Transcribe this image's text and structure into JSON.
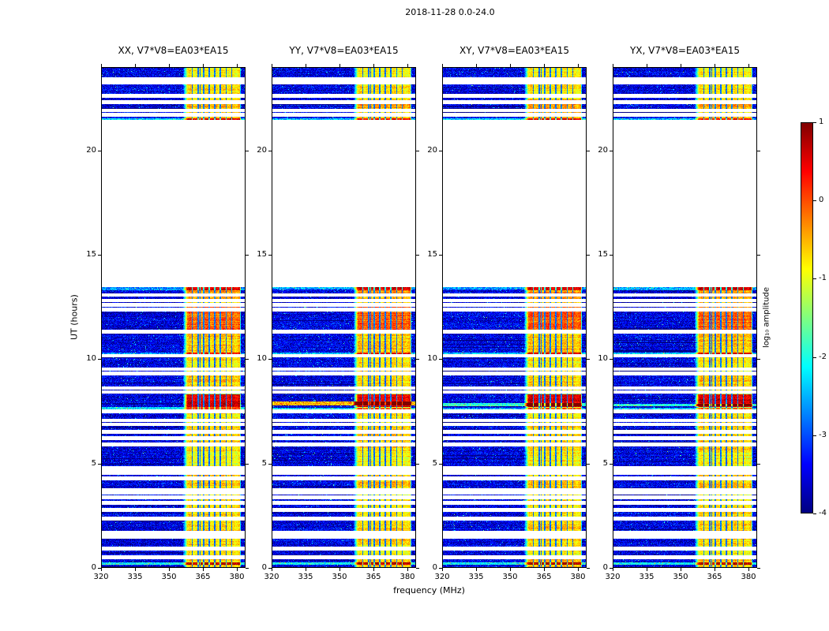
{
  "chart_data": {
    "type": "heatmap",
    "title": "2018-11-28 0.0-24.0",
    "xlabel": "frequency (MHz)",
    "ylabel": "UT (hours)",
    "x_range": [
      320,
      384
    ],
    "x_ticks": [
      320,
      335,
      350,
      365,
      380
    ],
    "y_range": [
      0,
      24
    ],
    "y_ticks": [
      0,
      5,
      10,
      15,
      20
    ],
    "colorbar": {
      "label": "log₁₀ amplitude",
      "ticks": [
        1,
        0,
        -1,
        -2,
        -3,
        -4
      ],
      "range": [
        -4,
        1
      ],
      "colormap": "jet"
    },
    "panels": [
      {
        "label": "XX, V7*V8=EA03*EA15",
        "seed": 101,
        "full_rows": [
          [
            7.56,
            7.7,
            1.3
          ]
        ]
      },
      {
        "label": "YY, V7*V8=EA03*EA15",
        "seed": 202,
        "full_rows": [
          [
            7.8,
            7.97,
            2.9
          ]
        ]
      },
      {
        "label": "XY, V7*V8=EA03*EA15",
        "seed": 303,
        "full_rows": [
          [
            7.76,
            7.9,
            1.6
          ]
        ]
      },
      {
        "label": "YX, V7*V8=EA03*EA15",
        "seed": 404,
        "full_rows": [
          [
            7.73,
            7.87,
            1.5
          ]
        ]
      }
    ],
    "time_segments": [
      [
        0.0,
        13.45
      ],
      [
        21.45,
        24.0
      ]
    ],
    "noise_floor": -3.5,
    "band": {
      "f_start": 358.2,
      "f_end": 381.4,
      "base_level": -1.15
    },
    "rfi_stripes": [
      360.4,
      362.9,
      363.9,
      365.4,
      367.9,
      370.4,
      372.9,
      375.4,
      377.9
    ],
    "stripe_width": 0.6,
    "gaps": [
      [
        0.5,
        0.09
      ],
      [
        0.92,
        0.09
      ],
      [
        1.5,
        0.1
      ],
      [
        1.68,
        0.08
      ],
      [
        2.35,
        0.09
      ],
      [
        2.78,
        0.08
      ],
      [
        3.12,
        0.08
      ],
      [
        3.38,
        0.08
      ],
      [
        3.58,
        0.08
      ],
      [
        3.72,
        0.09
      ],
      [
        4.28,
        0.09
      ],
      [
        4.58,
        0.11
      ],
      [
        4.78,
        0.08
      ],
      [
        5.92,
        0.09
      ],
      [
        6.22,
        0.08
      ],
      [
        6.52,
        0.08
      ],
      [
        6.88,
        0.09
      ],
      [
        7.08,
        0.08
      ],
      [
        7.5,
        0.11
      ],
      [
        8.42,
        0.08
      ],
      [
        8.62,
        0.09
      ],
      [
        9.32,
        0.09
      ],
      [
        9.52,
        0.08
      ],
      [
        10.18,
        0.08
      ],
      [
        11.32,
        0.08
      ],
      [
        12.38,
        0.09
      ],
      [
        12.6,
        0.09
      ],
      [
        12.82,
        0.08
      ],
      [
        13.08,
        0.09
      ],
      [
        21.72,
        0.09
      ],
      [
        21.92,
        0.08
      ],
      [
        22.32,
        0.09
      ],
      [
        22.62,
        0.11
      ],
      [
        23.25,
        0.09
      ],
      [
        23.42,
        0.08
      ]
    ],
    "bright_intervals": [
      [
        0.0,
        0.6,
        0.55
      ],
      [
        0.6,
        1.1,
        0.3
      ],
      [
        1.1,
        2.2,
        0.5
      ],
      [
        2.2,
        3.3,
        0.4
      ],
      [
        3.3,
        3.7,
        0.25
      ],
      [
        3.7,
        4.5,
        0.55
      ],
      [
        4.5,
        5.6,
        0.3
      ],
      [
        5.6,
        6.9,
        0.5
      ],
      [
        6.9,
        7.6,
        0.35
      ],
      [
        7.72,
        8.32,
        1.7
      ],
      [
        8.5,
        9.4,
        0.5
      ],
      [
        9.4,
        10.2,
        0.35
      ],
      [
        10.2,
        11.3,
        0.55
      ],
      [
        11.35,
        12.55,
        1.05
      ],
      [
        12.55,
        12.75,
        0.6
      ],
      [
        12.75,
        13.45,
        0.8
      ],
      [
        21.45,
        21.9,
        0.45
      ],
      [
        21.9,
        22.45,
        0.7
      ],
      [
        22.45,
        23.2,
        0.4
      ],
      [
        23.2,
        24.0,
        0.3
      ]
    ],
    "row_streaks": [
      [
        0.14,
        0.26,
        1.4
      ],
      [
        4.5,
        4.56,
        1.0
      ],
      [
        7.58,
        7.68,
        1.1
      ],
      [
        10.24,
        10.32,
        1.0
      ],
      [
        13.32,
        13.45,
        0.9
      ],
      [
        21.45,
        21.56,
        1.1
      ]
    ]
  }
}
